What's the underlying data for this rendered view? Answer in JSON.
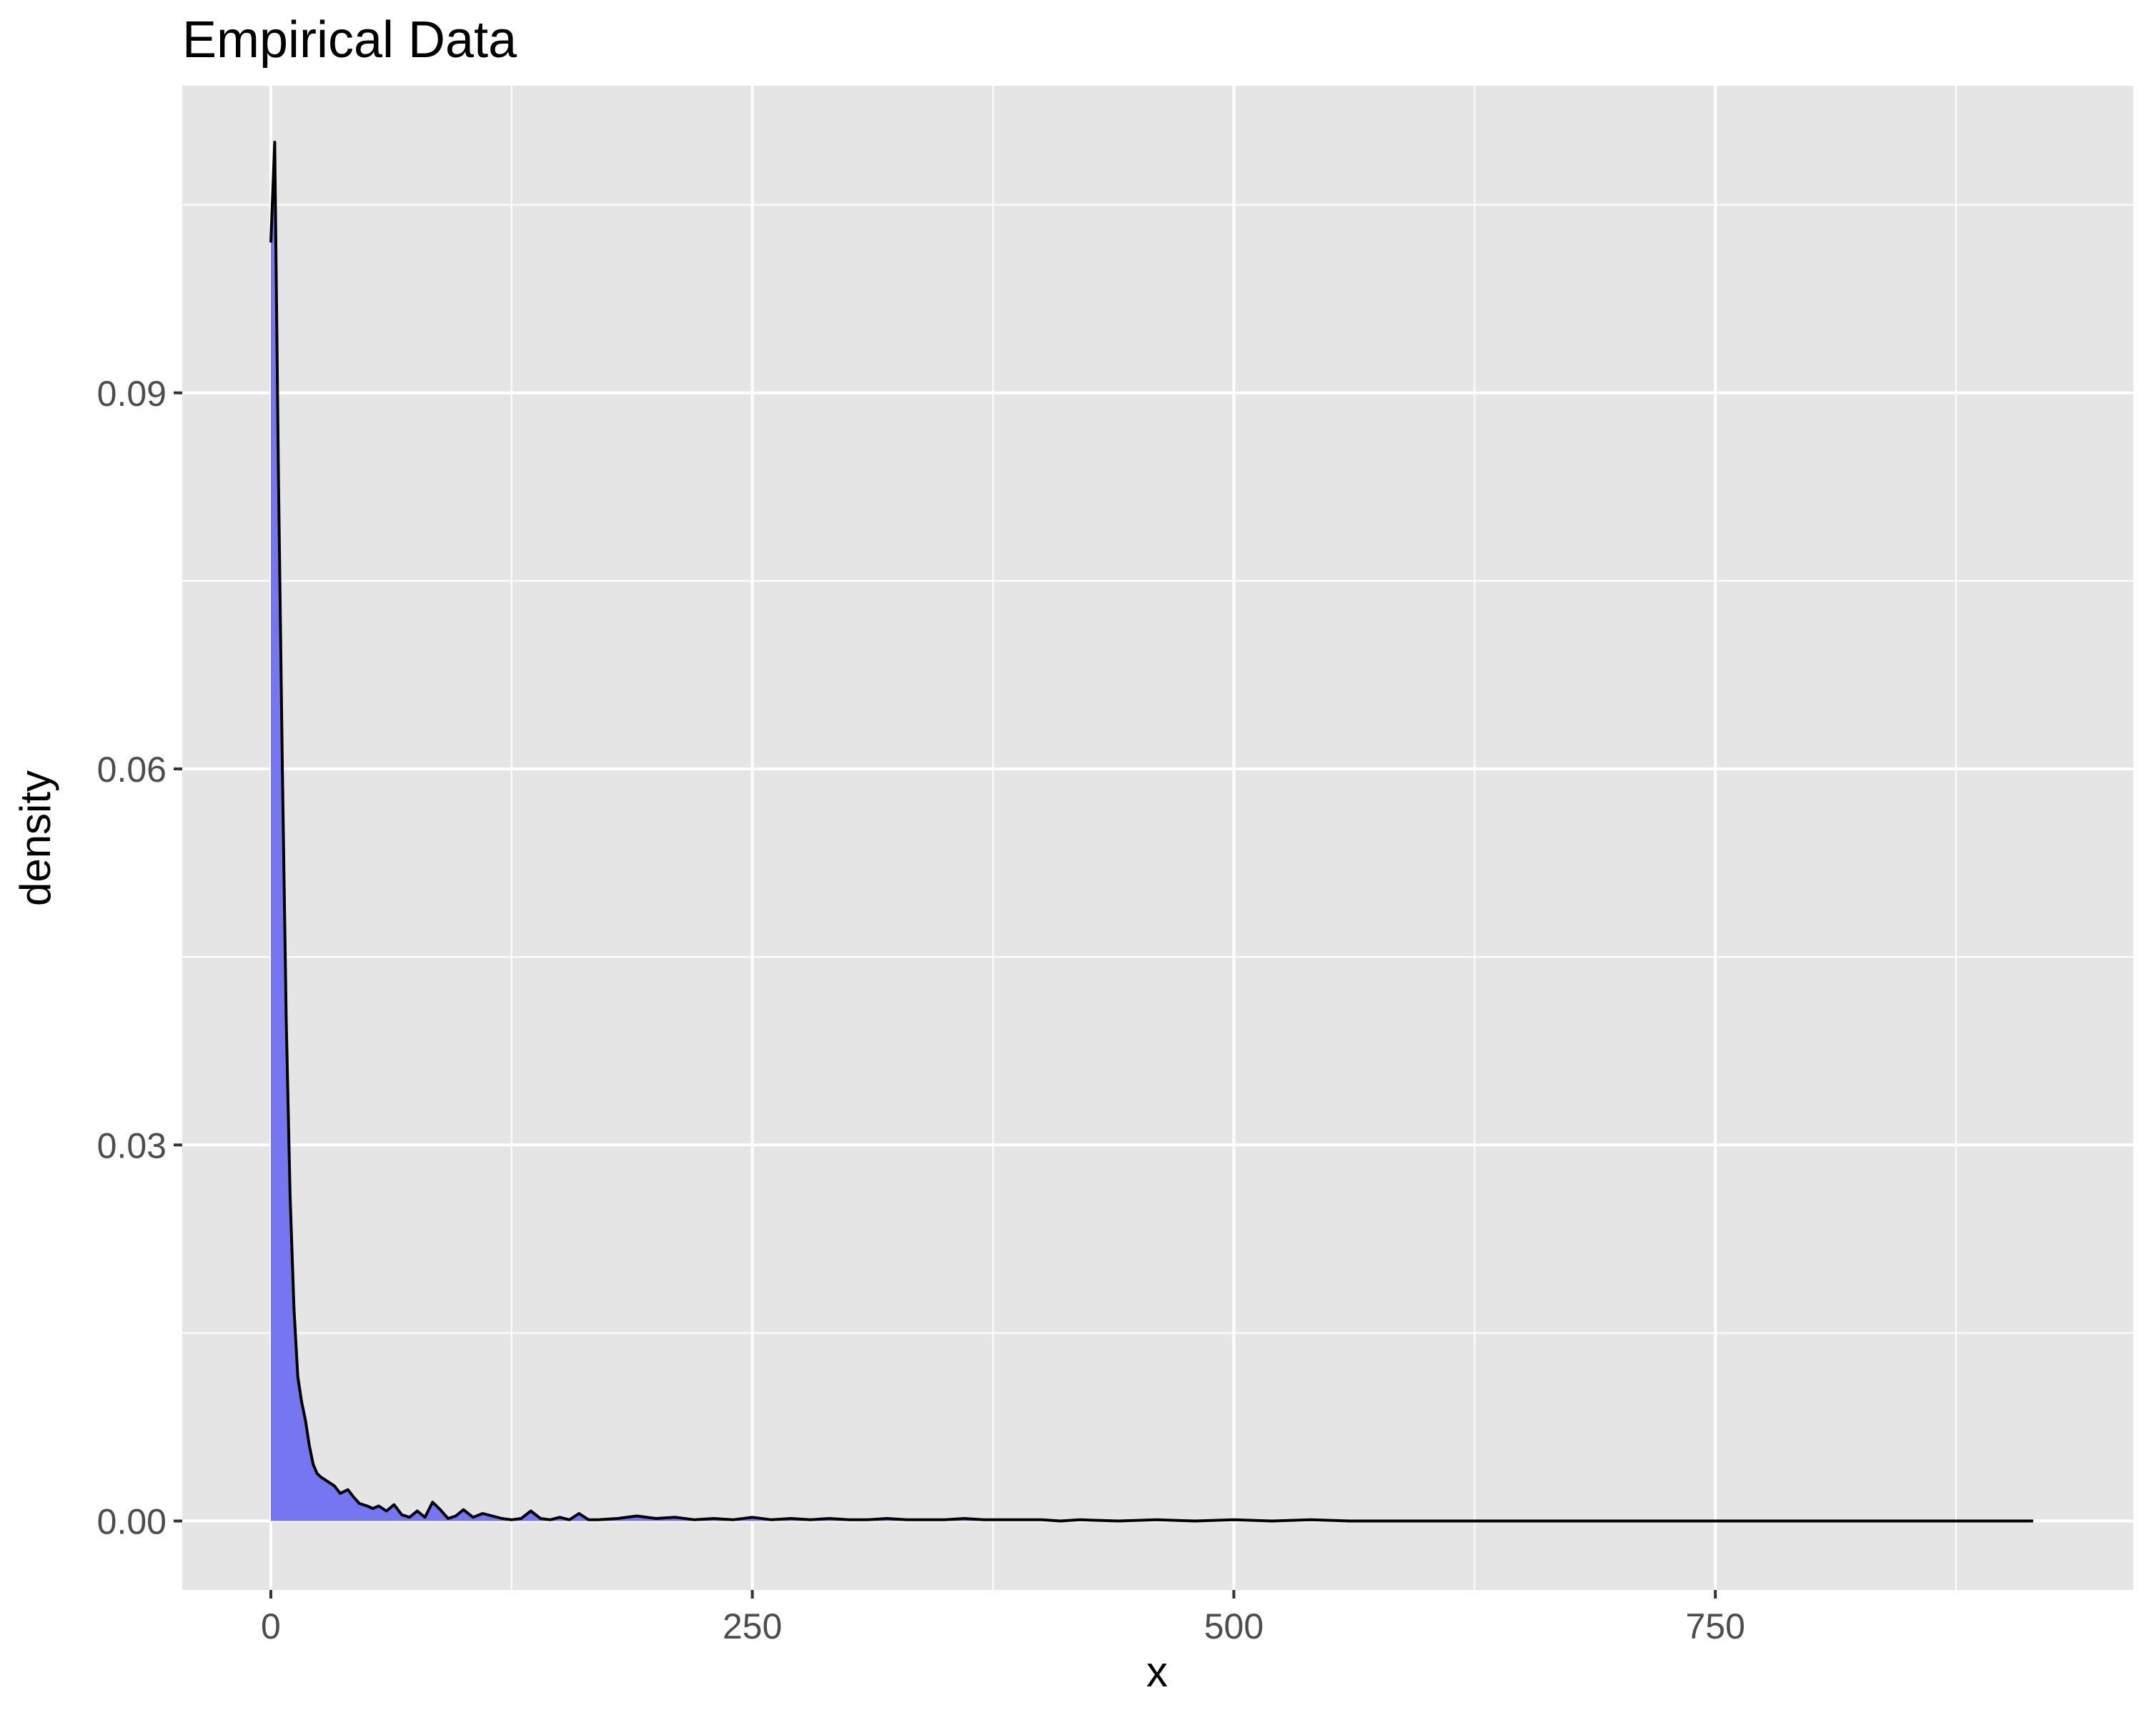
{
  "chart_data": {
    "type": "area",
    "title": "Empirical Data",
    "xlabel": "x",
    "ylabel": "density",
    "xlim": [
      -46,
      967
    ],
    "ylim": [
      -0.0055,
      0.1145
    ],
    "x_ticks": [
      0,
      250,
      500,
      750
    ],
    "x_tick_labels": [
      "0",
      "250",
      "500",
      "750"
    ],
    "y_ticks": [
      0.0,
      0.03,
      0.06,
      0.09
    ],
    "y_tick_labels": [
      "0.00",
      "0.03",
      "0.06",
      "0.09"
    ],
    "x_minor_ticks": [
      125,
      375,
      625,
      875
    ],
    "y_minor_ticks": [
      0.015,
      0.045,
      0.075,
      0.105
    ],
    "grid": true,
    "legend": "none",
    "colors": {
      "panel_background": "#e5e5e5",
      "grid": "#ffffff",
      "fill": "#7676f2",
      "line": "#000000"
    },
    "series": [
      {
        "x": [
          0,
          2,
          4,
          6,
          8,
          10,
          12,
          14,
          16,
          18,
          20,
          22,
          24,
          26,
          28,
          30,
          33,
          36,
          40,
          43,
          46,
          50,
          53,
          56,
          60,
          64,
          68,
          72,
          76,
          80,
          84,
          88,
          92,
          96,
          100,
          105,
          110,
          115,
          120,
          125,
          130,
          135,
          140,
          145,
          150,
          155,
          160,
          165,
          170,
          180,
          190,
          200,
          210,
          220,
          230,
          240,
          250,
          260,
          270,
          280,
          290,
          300,
          310,
          320,
          330,
          340,
          350,
          360,
          370,
          380,
          390,
          400,
          410,
          420,
          440,
          460,
          480,
          500,
          520,
          540,
          560,
          600,
          650,
          700,
          750,
          800,
          850,
          900,
          915
        ],
        "y": [
          0.102,
          0.11,
          0.083,
          0.06,
          0.04,
          0.026,
          0.017,
          0.0115,
          0.0095,
          0.008,
          0.006,
          0.0045,
          0.0038,
          0.0035,
          0.0033,
          0.0031,
          0.0028,
          0.0022,
          0.0025,
          0.0019,
          0.0014,
          0.0012,
          0.001,
          0.0012,
          0.0008,
          0.0013,
          0.0005,
          0.0003,
          0.0008,
          0.0003,
          0.0015,
          0.0009,
          0.0002,
          0.0004,
          0.0009,
          0.0003,
          0.0006,
          0.0004,
          0.0002,
          0.0001,
          0.0002,
          0.0008,
          0.0002,
          0.0001,
          0.0003,
          0.0001,
          0.0006,
          0.0001,
          0.0001,
          0.0002,
          0.0004,
          0.0002,
          0.0003,
          0.0001,
          0.0002,
          0.0001,
          0.0003,
          0.0001,
          0.0002,
          0.0001,
          0.0002,
          0.0001,
          0.0001,
          0.0002,
          0.0001,
          0.0001,
          0.0001,
          0.0002,
          0.0001,
          0.0001,
          0.0001,
          0.0001,
          0.0,
          0.0001,
          0.0,
          0.0001,
          0.0,
          0.0001,
          0.0,
          0.0001,
          0.0,
          0.0,
          0.0,
          0.0,
          0.0,
          0.0,
          0.0,
          0.0,
          0.0
        ]
      }
    ]
  }
}
